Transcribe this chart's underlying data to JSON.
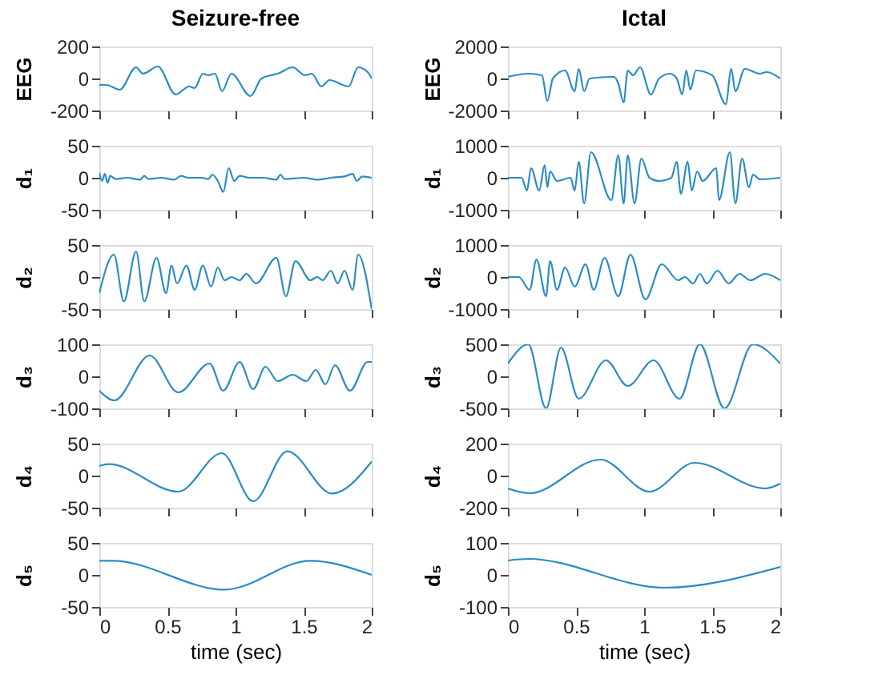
{
  "chart_data": [
    {
      "type": "line",
      "title": "Seizure-free",
      "ylabel": "EEG",
      "xlim": [
        0,
        2
      ],
      "xticks": [
        0,
        0.5,
        1,
        1.5,
        2
      ],
      "ylim": [
        -200,
        200
      ],
      "yticks": [
        -200,
        0,
        200
      ],
      "grid": false,
      "tick_labels": "y",
      "series": [
        {
          "color": "#2b8cc4",
          "x": [
            0,
            0.05,
            0.15,
            0.27,
            0.32,
            0.43,
            0.56,
            0.66,
            0.7,
            0.76,
            0.8,
            0.85,
            0.9,
            0.97,
            1.11,
            1.19,
            1.26,
            1.31,
            1.42,
            1.51,
            1.56,
            1.63,
            1.69,
            1.83,
            1.9,
            1.97,
            2.0
          ],
          "values": [
            -40,
            -40,
            -70,
            70,
            30,
            75,
            -100,
            -50,
            -60,
            30,
            20,
            30,
            -80,
            30,
            -110,
            0,
            20,
            30,
            70,
            20,
            30,
            -50,
            -10,
            -50,
            70,
            40,
            0
          ]
        }
      ]
    },
    {
      "type": "line",
      "title": "Ictal",
      "ylabel": "EEG",
      "xlim": [
        0,
        2
      ],
      "xticks": [
        0,
        0.5,
        1,
        1.5,
        2
      ],
      "ylim": [
        -2000,
        2000
      ],
      "yticks": [
        -2000,
        0,
        2000
      ],
      "grid": false,
      "tick_labels": "y",
      "series": [
        {
          "color": "#2b8cc4",
          "x": [
            0,
            0.15,
            0.25,
            0.29,
            0.33,
            0.42,
            0.49,
            0.52,
            0.56,
            0.6,
            0.78,
            0.81,
            0.85,
            0.88,
            0.92,
            0.97,
            1.05,
            1.11,
            1.19,
            1.24,
            1.28,
            1.31,
            1.34,
            1.38,
            1.5,
            1.6,
            1.64,
            1.67,
            1.74,
            1.85,
            1.9,
            2.0
          ],
          "values": [
            100,
            300,
            200,
            -1400,
            0,
            500,
            -800,
            600,
            -800,
            0,
            100,
            -300,
            -1500,
            500,
            200,
            700,
            -1000,
            0,
            300,
            0,
            -1000,
            500,
            -700,
            500,
            200,
            -1600,
            600,
            -800,
            600,
            300,
            400,
            0
          ]
        }
      ]
    },
    {
      "type": "line",
      "ylabel": "d₁",
      "xlim": [
        0,
        2
      ],
      "xticks": [
        0,
        0.5,
        1,
        1.5,
        2
      ],
      "ylim": [
        -50,
        50
      ],
      "yticks": [
        -50,
        0,
        50
      ],
      "grid": false,
      "tick_labels": "y",
      "series": [
        {
          "color": "#2b8cc4",
          "x": [
            0,
            0.02,
            0.04,
            0.06,
            0.08,
            0.12,
            0.2,
            0.3,
            0.33,
            0.36,
            0.45,
            0.55,
            0.6,
            0.65,
            0.75,
            0.8,
            0.83,
            0.87,
            0.91,
            0.95,
            0.99,
            1.03,
            1.1,
            1.2,
            1.3,
            1.33,
            1.36,
            1.5,
            1.6,
            1.7,
            1.8,
            1.86,
            1.89,
            1.93,
            2.0
          ],
          "values": [
            8,
            -5,
            6,
            -8,
            3,
            -2,
            0,
            -3,
            3,
            -2,
            0,
            -3,
            3,
            0,
            0,
            -2,
            5,
            -5,
            -22,
            15,
            -5,
            3,
            0,
            0,
            -3,
            5,
            -2,
            0,
            -3,
            0,
            2,
            6,
            -5,
            2,
            0
          ]
        }
      ]
    },
    {
      "type": "line",
      "ylabel": "d₁",
      "xlim": [
        0,
        2
      ],
      "xticks": [
        0,
        0.5,
        1,
        1.5,
        2
      ],
      "ylim": [
        -1000,
        1000
      ],
      "yticks": [
        -1000,
        0,
        1000
      ],
      "grid": false,
      "tick_labels": "y",
      "series": [
        {
          "color": "#2b8cc4",
          "x": [
            0,
            0.1,
            0.14,
            0.17,
            0.23,
            0.27,
            0.29,
            0.31,
            0.36,
            0.46,
            0.49,
            0.52,
            0.56,
            0.61,
            0.76,
            0.81,
            0.85,
            0.88,
            0.93,
            0.98,
            1.04,
            1.11,
            1.2,
            1.24,
            1.27,
            1.32,
            1.35,
            1.39,
            1.43,
            1.53,
            1.55,
            1.63,
            1.67,
            1.72,
            1.77,
            1.8,
            1.85,
            2.0
          ],
          "values": [
            0,
            0,
            -400,
            300,
            -400,
            400,
            -300,
            200,
            -100,
            0,
            -400,
            500,
            -800,
            800,
            -700,
            700,
            -800,
            700,
            -800,
            600,
            0,
            -100,
            0,
            500,
            -500,
            500,
            -400,
            200,
            -100,
            300,
            -700,
            800,
            -800,
            600,
            -300,
            100,
            -50,
            0
          ]
        }
      ]
    },
    {
      "type": "line",
      "ylabel": "d₂",
      "xlim": [
        0,
        2
      ],
      "xticks": [
        0,
        0.5,
        1,
        1.5,
        2
      ],
      "ylim": [
        -50,
        50
      ],
      "yticks": [
        -50,
        0,
        50
      ],
      "grid": false,
      "tick_labels": "y",
      "series": [
        {
          "color": "#2b8cc4",
          "x": [
            0,
            0.107,
            0.18,
            0.27,
            0.33,
            0.42,
            0.49,
            0.53,
            0.57,
            0.64,
            0.7,
            0.76,
            0.82,
            0.87,
            0.92,
            0.97,
            1.03,
            1.08,
            1.15,
            1.3,
            1.37,
            1.44,
            1.55,
            1.6,
            1.64,
            1.7,
            1.75,
            1.8,
            1.86,
            1.9,
            2.0
          ],
          "values": [
            -25,
            35,
            -38,
            40,
            -38,
            30,
            -25,
            18,
            -10,
            18,
            -20,
            18,
            -15,
            15,
            -5,
            0,
            -5,
            5,
            -10,
            30,
            -30,
            25,
            -5,
            0,
            -5,
            10,
            -10,
            10,
            -20,
            35,
            -50
          ]
        }
      ]
    },
    {
      "type": "line",
      "ylabel": "d₂",
      "xlim": [
        0,
        2
      ],
      "xticks": [
        0,
        0.5,
        1,
        1.5,
        2
      ],
      "ylim": [
        -1000,
        1000
      ],
      "yticks": [
        -1000,
        0,
        1000
      ],
      "grid": false,
      "tick_labels": "y",
      "series": [
        {
          "color": "#2b8cc4",
          "x": [
            0,
            0.08,
            0.16,
            0.21,
            0.28,
            0.31,
            0.36,
            0.42,
            0.49,
            0.57,
            0.63,
            0.71,
            0.81,
            0.9,
            1.01,
            1.13,
            1.25,
            1.3,
            1.36,
            1.41,
            1.46,
            1.54,
            1.62,
            1.7,
            1.78,
            1.89,
            2.0
          ],
          "values": [
            0,
            0,
            -400,
            550,
            -600,
            500,
            -400,
            300,
            -300,
            400,
            -400,
            600,
            -600,
            700,
            -700,
            400,
            -100,
            0,
            -200,
            100,
            -200,
            200,
            -200,
            100,
            -100,
            100,
            -100
          ]
        }
      ]
    },
    {
      "type": "line",
      "ylabel": "d₃",
      "xlim": [
        0,
        2
      ],
      "xticks": [
        0,
        0.5,
        1,
        1.5,
        2
      ],
      "ylim": [
        -100,
        100
      ],
      "yticks": [
        -100,
        0,
        100
      ],
      "grid": false,
      "tick_labels": "y",
      "series": [
        {
          "color": "#2b8cc4",
          "x": [
            0,
            0.11,
            0.37,
            0.58,
            0.81,
            0.91,
            1.03,
            1.13,
            1.22,
            1.31,
            1.42,
            1.52,
            1.59,
            1.66,
            1.73,
            1.84,
            1.97,
            2.0
          ],
          "values": [
            -45,
            -75,
            65,
            -50,
            40,
            -45,
            45,
            -40,
            30,
            -15,
            5,
            -15,
            20,
            -25,
            35,
            -45,
            45,
            45
          ]
        }
      ]
    },
    {
      "type": "line",
      "ylabel": "d₃",
      "xlim": [
        0,
        2
      ],
      "xticks": [
        0,
        0.5,
        1,
        1.5,
        2
      ],
      "ylim": [
        -500,
        500
      ],
      "yticks": [
        -500,
        0,
        500
      ],
      "grid": false,
      "tick_labels": "y",
      "series": [
        {
          "color": "#2b8cc4",
          "x": [
            0,
            0.15,
            0.28,
            0.39,
            0.52,
            0.72,
            0.88,
            1.07,
            1.26,
            1.41,
            1.59,
            1.8,
            2.0
          ],
          "values": [
            200,
            500,
            -500,
            450,
            -350,
            250,
            -150,
            250,
            -350,
            500,
            -500,
            500,
            200
          ]
        }
      ]
    },
    {
      "type": "line",
      "ylabel": "d₄",
      "xlim": [
        0,
        2
      ],
      "xticks": [
        0,
        0.5,
        1,
        1.5,
        2
      ],
      "ylim": [
        -50,
        50
      ],
      "yticks": [
        -50,
        0,
        50
      ],
      "grid": false,
      "tick_labels": "y",
      "series": [
        {
          "color": "#2b8cc4",
          "x": [
            0,
            0.07,
            0.58,
            0.9,
            1.13,
            1.38,
            1.71,
            2.0
          ],
          "values": [
            15,
            18,
            -25,
            35,
            -40,
            38,
            -28,
            22
          ]
        }
      ]
    },
    {
      "type": "line",
      "ylabel": "d₄",
      "xlim": [
        0,
        2
      ],
      "xticks": [
        0,
        0.5,
        1,
        1.5,
        2
      ],
      "ylim": [
        -200,
        200
      ],
      "yticks": [
        -200,
        0,
        200
      ],
      "grid": false,
      "tick_labels": "y",
      "series": [
        {
          "color": "#2b8cc4",
          "x": [
            0,
            0.16,
            0.68,
            1.04,
            1.37,
            1.89,
            2.0
          ],
          "values": [
            -80,
            -110,
            100,
            -100,
            80,
            -80,
            -50
          ]
        }
      ]
    },
    {
      "type": "line",
      "ylabel": "d₅",
      "xlabel": "time (sec)",
      "xlim": [
        0,
        2
      ],
      "xticks": [
        0,
        0.5,
        1,
        1.5,
        2
      ],
      "ylim": [
        -50,
        50
      ],
      "yticks": [
        -50,
        0,
        50
      ],
      "grid": false,
      "series": [
        {
          "color": "#2b8cc4",
          "x": [
            0,
            0.1,
            0.92,
            1.55,
            2.0
          ],
          "values": [
            22,
            22,
            -23,
            22,
            0
          ]
        }
      ]
    },
    {
      "type": "line",
      "ylabel": "d₅",
      "xlabel": "time (sec)",
      "xlim": [
        0,
        2
      ],
      "xticks": [
        0,
        0.5,
        1,
        1.5,
        2
      ],
      "ylim": [
        -100,
        100
      ],
      "yticks": [
        -100,
        0,
        100
      ],
      "grid": false,
      "series": [
        {
          "color": "#2b8cc4",
          "x": [
            0,
            0.15,
            1.15,
            2.0
          ],
          "values": [
            45,
            50,
            -40,
            25
          ]
        }
      ]
    }
  ]
}
